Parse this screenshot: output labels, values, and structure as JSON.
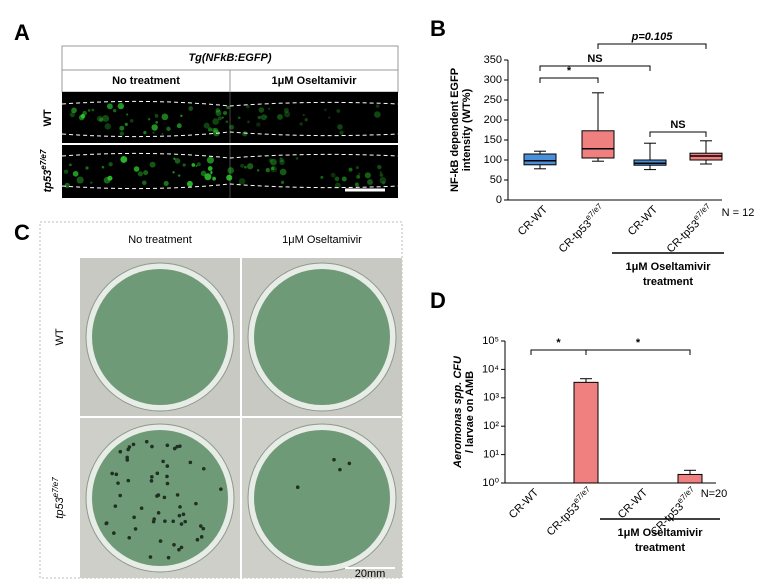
{
  "panels": {
    "A": {
      "label": "A",
      "header": "Tg(NFkB:EGFP)",
      "columns": [
        "No treatment",
        "1μM Oseltamivir"
      ],
      "rows": [
        "WT",
        {
          "base": "tp53",
          "sup": "e7/e7"
        }
      ]
    },
    "C": {
      "label": "C",
      "columns": [
        "No treatment",
        "1μM Oseltamivir"
      ],
      "rows": [
        "WT",
        {
          "base": "tp53",
          "sup": "e7/e7"
        }
      ],
      "scale_label": "20mm"
    }
  },
  "chart_data": [
    {
      "type": "box",
      "label": "B",
      "ylabel": [
        "NF-kB dependent EGFP",
        "intensity (WT%)"
      ],
      "categories": [
        "CR-WT",
        {
          "base": "CR-tp53",
          "sup": "e7/e7"
        },
        "CR-WT",
        {
          "base": "CR-tp53",
          "sup": "e7/e7"
        }
      ],
      "boxes": [
        {
          "min": 78,
          "q1": 88,
          "median": 98,
          "q3": 115,
          "max": 122
        },
        {
          "min": 97,
          "q1": 105,
          "median": 128,
          "q3": 173,
          "max": 268
        },
        {
          "min": 76,
          "q1": 87,
          "median": 92,
          "q3": 100,
          "max": 142
        },
        {
          "min": 90,
          "q1": 100,
          "median": 110,
          "q3": 117,
          "max": 148
        }
      ],
      "colors": [
        "#4a90d9",
        "#f08080",
        "#4a90d9",
        "#f08080"
      ],
      "ylim": [
        0,
        350
      ],
      "yticks": [
        0,
        50,
        100,
        150,
        200,
        250,
        300,
        350
      ],
      "annotations": [
        "*",
        "NS",
        "p=0.105",
        "NS"
      ],
      "n_label": "N = 12",
      "group_label": [
        "1μM Oseltamivir",
        "treatment"
      ]
    },
    {
      "type": "bar",
      "label": "D",
      "log_scale": true,
      "ylabel": [
        "Aeromonas spp. CFU",
        "/ larvae on AMB"
      ],
      "categories": [
        "CR-WT",
        {
          "base": "CR-tp53",
          "sup": "e7/e7"
        },
        "CR-WT",
        {
          "base": "CR-tp53",
          "sup": "e7/e7"
        }
      ],
      "values": [
        1,
        3500,
        1,
        2
      ],
      "errors": [
        0,
        1200,
        0,
        0.8
      ],
      "colors": [
        "#f08080",
        "#f08080",
        "#f08080",
        "#f08080"
      ],
      "ylim": [
        1,
        100000
      ],
      "yticks": [
        {
          "value": 1,
          "label": "10⁰"
        },
        {
          "value": 10,
          "label": "10¹"
        },
        {
          "value": 100,
          "label": "10²"
        },
        {
          "value": 1000,
          "label": "10³"
        },
        {
          "value": 10000,
          "label": "10⁴"
        },
        {
          "value": 100000,
          "label": "10⁵"
        }
      ],
      "annotations": [
        "*",
        "*"
      ],
      "n_label": "N=20",
      "group_label": [
        "1μM Oseltamivir",
        "treatment"
      ]
    }
  ]
}
